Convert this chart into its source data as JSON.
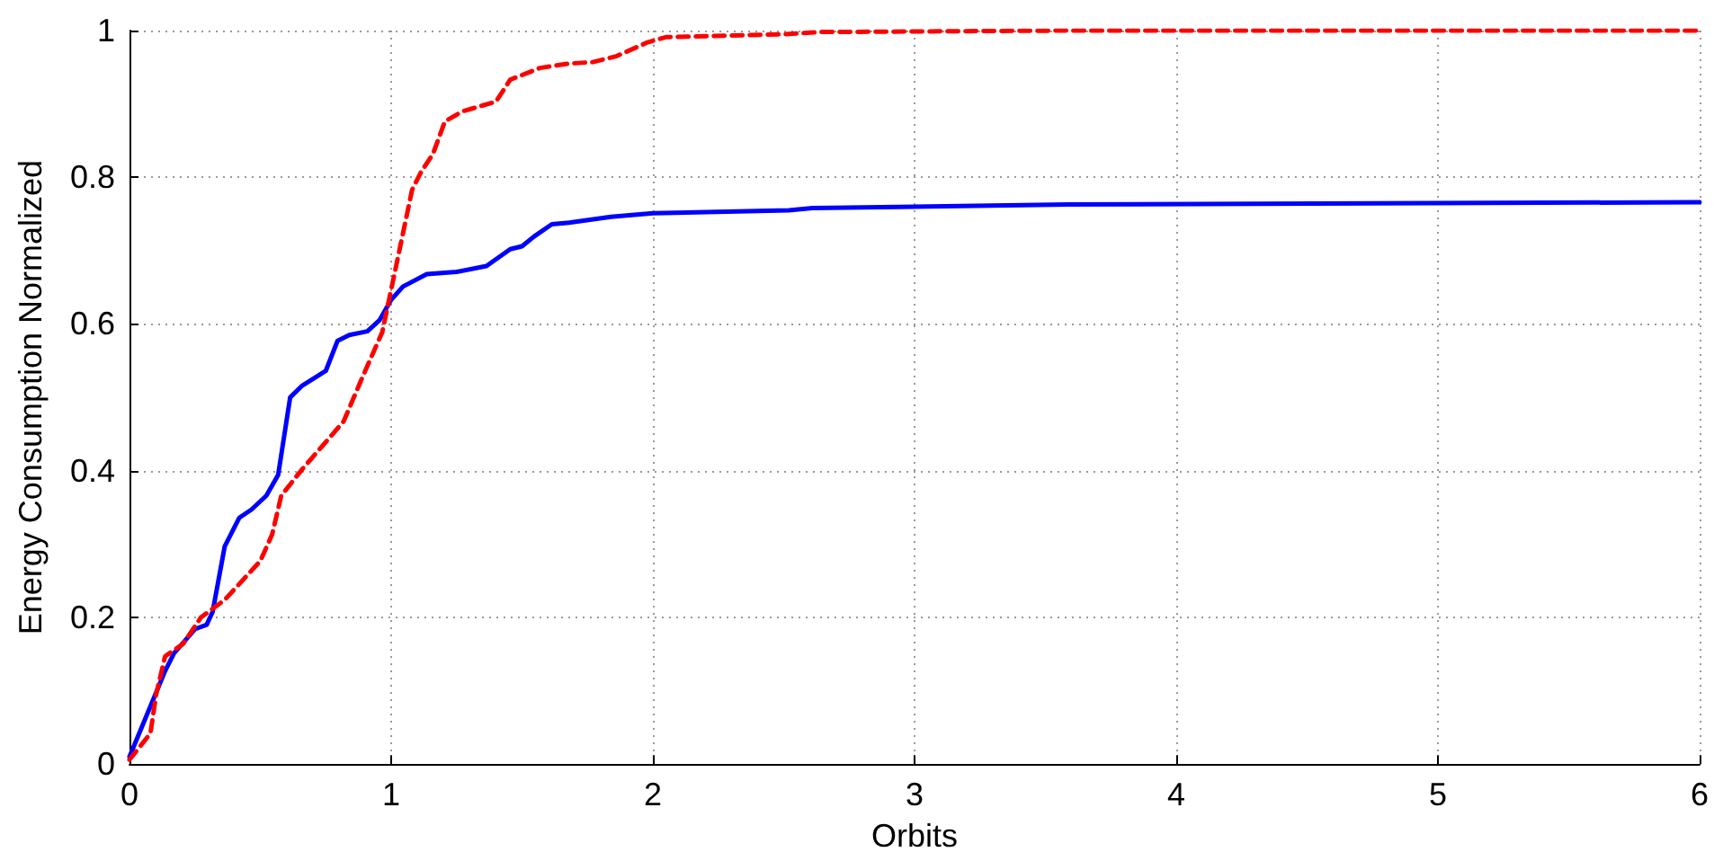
{
  "chart_data": {
    "type": "line",
    "xlabel": "Orbits",
    "ylabel": "Energy Consumption Normalized",
    "xlim": [
      0,
      6
    ],
    "xticks": [
      0,
      1,
      2,
      3,
      4,
      5,
      6
    ],
    "ylim": [
      0,
      1
    ],
    "yticks": [
      0,
      0.2,
      0.4,
      0.6,
      0.8,
      1
    ],
    "grid": true,
    "marker": "none",
    "series": [
      {
        "color": "#0000ff",
        "line_style": "solid",
        "x": [
          0,
          0.136,
          0.17,
          0.25,
          0.295,
          0.318,
          0.364,
          0.42,
          0.466,
          0.523,
          0.568,
          0.614,
          0.66,
          0.75,
          0.795,
          0.84,
          0.909,
          0.955,
          1.0,
          1.045,
          1.136,
          1.25,
          1.364,
          1.455,
          1.5,
          1.545,
          1.614,
          1.68,
          1.84,
          2.0,
          2.52,
          2.61,
          3.59,
          6
        ],
        "values": [
          0.01,
          0.127,
          0.151,
          0.184,
          0.19,
          0.208,
          0.297,
          0.336,
          0.347,
          0.366,
          0.394,
          0.5,
          0.516,
          0.536,
          0.577,
          0.585,
          0.59,
          0.605,
          0.633,
          0.651,
          0.668,
          0.671,
          0.679,
          0.702,
          0.706,
          0.719,
          0.736,
          0.738,
          0.746,
          0.751,
          0.755,
          0.758,
          0.763,
          0.766
        ]
      },
      {
        "color": "#ff0000",
        "line_style": "dashed",
        "x": [
          0,
          0.08,
          0.102,
          0.136,
          0.205,
          0.273,
          0.364,
          0.5,
          0.545,
          0.58,
          0.66,
          0.818,
          0.886,
          0.966,
          1.023,
          1.08,
          1.114,
          1.16,
          1.205,
          1.273,
          1.4,
          1.455,
          1.568,
          1.68,
          1.77,
          1.86,
          1.98,
          2.05,
          2.5,
          2.64,
          3.59,
          6
        ],
        "values": [
          0.006,
          0.042,
          0.095,
          0.147,
          0.164,
          0.2,
          0.224,
          0.277,
          0.313,
          0.366,
          0.402,
          0.467,
          0.524,
          0.589,
          0.686,
          0.783,
          0.807,
          0.832,
          0.876,
          0.89,
          0.903,
          0.933,
          0.949,
          0.955,
          0.957,
          0.965,
          0.984,
          0.991,
          0.995,
          0.998,
          1.0,
          1.0
        ]
      }
    ]
  }
}
